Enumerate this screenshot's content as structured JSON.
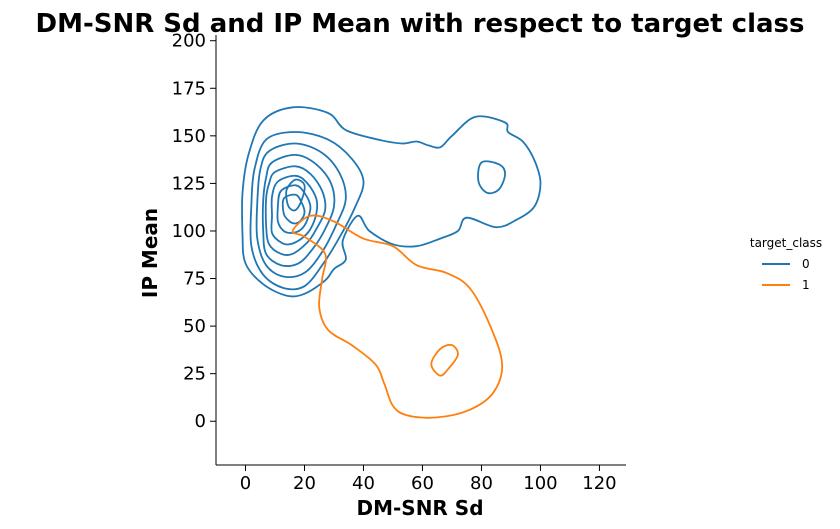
{
  "chart_data": {
    "type": "kde-contour",
    "title": "DM-SNR Sd and IP Mean with respect to target class",
    "xlabel": "DM-SNR Sd",
    "ylabel": "IP Mean",
    "xlim": [
      -10,
      129
    ],
    "ylim": [
      -23,
      203
    ],
    "xticks": [
      0,
      20,
      40,
      60,
      80,
      100,
      120
    ],
    "yticks": [
      0,
      25,
      50,
      75,
      100,
      125,
      150,
      175,
      200
    ],
    "grid": false,
    "legend": {
      "title": "target_class",
      "position": "right"
    },
    "series": [
      {
        "name": "0",
        "color": "#1f77b4",
        "contours": [
          [
            [
              6,
              158
            ],
            [
              16,
              165
            ],
            [
              28,
              162
            ],
            [
              34,
              153
            ],
            [
              45,
              148
            ],
            [
              53,
              146
            ],
            [
              58,
              147
            ],
            [
              62,
              145
            ],
            [
              66,
              144
            ],
            [
              70,
              150
            ],
            [
              78,
              160
            ],
            [
              88,
              157
            ],
            [
              89,
              152
            ],
            [
              94,
              147
            ],
            [
              98,
              137
            ],
            [
              100,
              125
            ],
            [
              98,
              113
            ],
            [
              92,
              106
            ],
            [
              85,
              102
            ],
            [
              75,
              107
            ],
            [
              72,
              100
            ],
            [
              66,
              96
            ],
            [
              58,
              92
            ],
            [
              50,
              93
            ],
            [
              42,
              100
            ],
            [
              38,
              108
            ],
            [
              33,
              95
            ],
            [
              34,
              85
            ],
            [
              30,
              80
            ],
            [
              27,
              74
            ],
            [
              20,
              67
            ],
            [
              14,
              66
            ],
            [
              6,
              72
            ],
            [
              0,
              83
            ],
            [
              -1,
              98
            ],
            [
              -1,
              120
            ],
            [
              1,
              140
            ],
            [
              6,
              158
            ]
          ],
          [
            [
              80,
              136
            ],
            [
              86,
              135
            ],
            [
              88,
              130
            ],
            [
              86,
              122
            ],
            [
              82,
              120
            ],
            [
              79,
              126
            ],
            [
              80,
              136
            ]
          ],
          [
            [
              7,
              148
            ],
            [
              17,
              152
            ],
            [
              28,
              148
            ],
            [
              36,
              138
            ],
            [
              40,
              126
            ],
            [
              37,
              112
            ],
            [
              32,
              97
            ],
            [
              26,
              82
            ],
            [
              20,
              71
            ],
            [
              13,
              70
            ],
            [
              6,
              77
            ],
            [
              2,
              92
            ],
            [
              2,
              114
            ],
            [
              3,
              132
            ],
            [
              7,
              148
            ]
          ],
          [
            [
              8,
              142
            ],
            [
              17,
              146
            ],
            [
              26,
              141
            ],
            [
              32,
              130
            ],
            [
              34,
              117
            ],
            [
              31,
              104
            ],
            [
              26,
              89
            ],
            [
              20,
              78
            ],
            [
              13,
              76
            ],
            [
              7,
              82
            ],
            [
              4,
              96
            ],
            [
              4,
              115
            ],
            [
              5,
              132
            ],
            [
              8,
              142
            ]
          ],
          [
            [
              9,
              136
            ],
            [
              17,
              140
            ],
            [
              24,
              135
            ],
            [
              29,
              125
            ],
            [
              30,
              113
            ],
            [
              27,
              101
            ],
            [
              23,
              91
            ],
            [
              18,
              83
            ],
            [
              12,
              82
            ],
            [
              7,
              88
            ],
            [
              6,
              100
            ],
            [
              6,
              116
            ],
            [
              7,
              128
            ],
            [
              9,
              136
            ]
          ],
          [
            [
              10,
              131
            ],
            [
              17,
              134
            ],
            [
              22,
              130
            ],
            [
              26,
              121
            ],
            [
              27,
              111
            ],
            [
              24,
              101
            ],
            [
              21,
              94
            ],
            [
              16,
              88
            ],
            [
              12,
              88
            ],
            [
              8,
              93
            ],
            [
              7,
              103
            ],
            [
              7,
              117
            ],
            [
              8,
              125
            ],
            [
              10,
              131
            ]
          ],
          [
            [
              11,
              126
            ],
            [
              17,
              129
            ],
            [
              21,
              125
            ],
            [
              24,
              117
            ],
            [
              24,
              109
            ],
            [
              22,
              101
            ],
            [
              19,
              96
            ],
            [
              15,
              93
            ],
            [
              12,
              94
            ],
            [
              9,
              99
            ],
            [
              9,
              108
            ],
            [
              9,
              118
            ],
            [
              11,
              126
            ]
          ],
          [
            [
              12,
              121
            ],
            [
              17,
              124
            ],
            [
              20,
              120
            ],
            [
              22,
              113
            ],
            [
              21,
              106
            ],
            [
              19,
              101
            ],
            [
              16,
              99
            ],
            [
              13,
              100
            ],
            [
              11,
              105
            ],
            [
              11,
              113
            ],
            [
              12,
              121
            ]
          ],
          [
            [
              13,
              117
            ],
            [
              17,
              119
            ],
            [
              19,
              115
            ],
            [
              20,
              110
            ],
            [
              19,
              106
            ],
            [
              17,
              104
            ],
            [
              15,
              105
            ],
            [
              13,
              109
            ],
            [
              13,
              117
            ]
          ],
          [
            [
              14,
              122
            ],
            [
              17,
              127
            ],
            [
              20,
              124
            ],
            [
              19,
              116
            ],
            [
              17,
              111
            ],
            [
              15,
              112
            ],
            [
              14,
              116
            ],
            [
              14,
              122
            ]
          ]
        ]
      },
      {
        "name": "1",
        "color": "#ff7f0e",
        "contours": [
          [
            [
              16,
              100
            ],
            [
              22,
              108
            ],
            [
              30,
              105
            ],
            [
              40,
              96
            ],
            [
              50,
              92
            ],
            [
              58,
              82
            ],
            [
              68,
              78
            ],
            [
              76,
              70
            ],
            [
              83,
              50
            ],
            [
              87,
              30
            ],
            [
              84,
              15
            ],
            [
              76,
              6
            ],
            [
              65,
              2
            ],
            [
              55,
              3
            ],
            [
              50,
              8
            ],
            [
              47,
              20
            ],
            [
              44,
              30
            ],
            [
              36,
              40
            ],
            [
              28,
              48
            ],
            [
              25,
              60
            ],
            [
              26,
              75
            ],
            [
              27,
              88
            ],
            [
              20,
              97
            ],
            [
              16,
              100
            ]
          ],
          [
            [
              63,
              30
            ],
            [
              66,
              38
            ],
            [
              70,
              40
            ],
            [
              72,
              35
            ],
            [
              69,
              28
            ],
            [
              66,
              24
            ],
            [
              63,
              30
            ]
          ]
        ]
      }
    ]
  }
}
